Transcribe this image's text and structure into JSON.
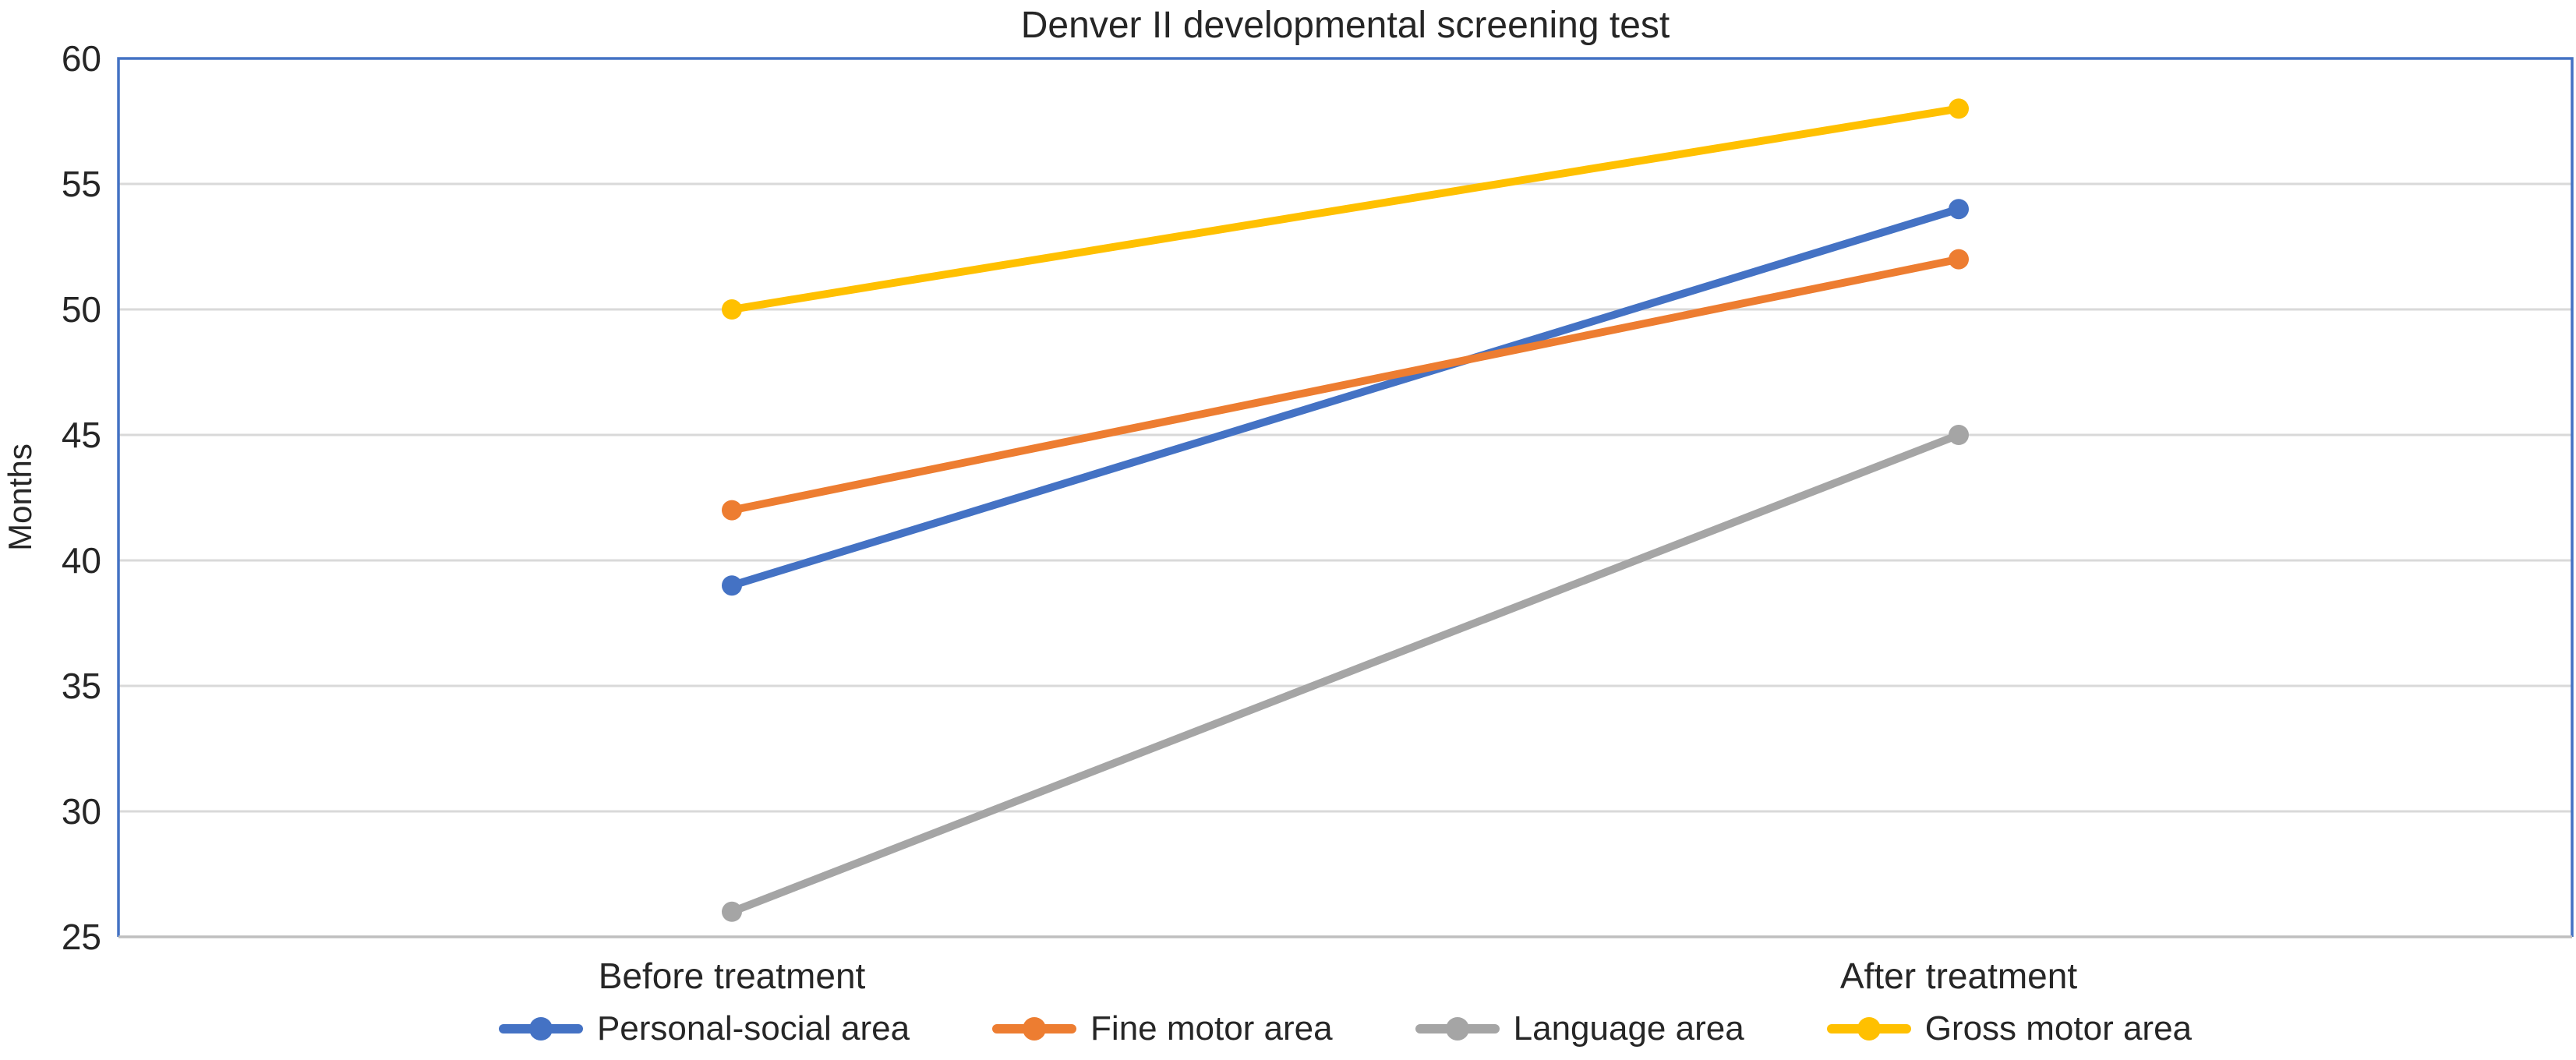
{
  "chart_data": {
    "type": "line",
    "title": "Denver II developmental screening test",
    "xlabel": "",
    "ylabel": "Months",
    "categories": [
      "Before treatment",
      "After treatment"
    ],
    "series": [
      {
        "name": "Personal-social area",
        "values": [
          39,
          54
        ],
        "color": "#4472C4"
      },
      {
        "name": "Fine motor area",
        "values": [
          42,
          52
        ],
        "color": "#ED7D31"
      },
      {
        "name": "Language area",
        "values": [
          26,
          45
        ],
        "color": "#A5A5A5"
      },
      {
        "name": "Gross motor area",
        "values": [
          50,
          58
        ],
        "color": "#FFC000"
      }
    ],
    "ylim": [
      25,
      60
    ],
    "ytick_step": 5,
    "yticks": [
      25,
      30,
      35,
      40,
      45,
      50,
      55,
      60
    ],
    "grid": "horizontal",
    "legend_position": "bottom",
    "marker": "circle",
    "colors": {
      "plot_border": "#4472C4",
      "gridline": "#D9D9D9",
      "axis_line": "#BFBFBF",
      "text": "#262626"
    }
  }
}
